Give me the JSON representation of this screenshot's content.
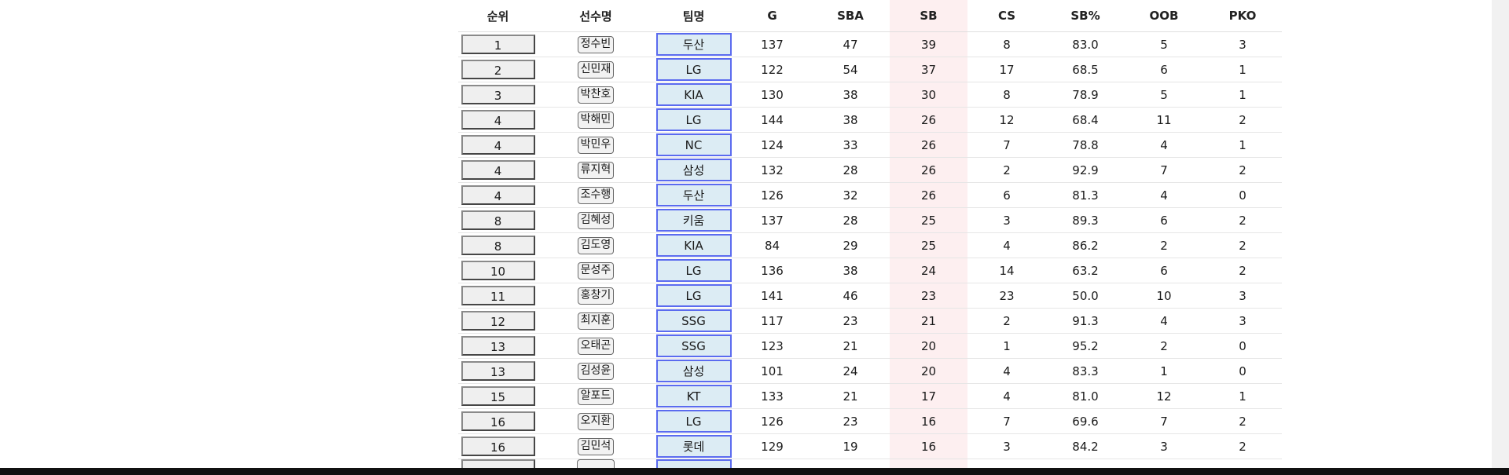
{
  "table": {
    "headers": [
      "순위",
      "선수명",
      "팀명",
      "G",
      "SBA",
      "SB",
      "CS",
      "SB%",
      "OOB",
      "PKO"
    ],
    "rows": [
      {
        "rank": "1",
        "name": "정수빈",
        "team": "두산",
        "g": "137",
        "sba": "47",
        "sb": "39",
        "cs": "8",
        "sbp": "83.0",
        "oob": "5",
        "pko": "3"
      },
      {
        "rank": "2",
        "name": "신민재",
        "team": "LG",
        "g": "122",
        "sba": "54",
        "sb": "37",
        "cs": "17",
        "sbp": "68.5",
        "oob": "6",
        "pko": "1"
      },
      {
        "rank": "3",
        "name": "박찬호",
        "team": "KIA",
        "g": "130",
        "sba": "38",
        "sb": "30",
        "cs": "8",
        "sbp": "78.9",
        "oob": "5",
        "pko": "1"
      },
      {
        "rank": "4",
        "name": "박해민",
        "team": "LG",
        "g": "144",
        "sba": "38",
        "sb": "26",
        "cs": "12",
        "sbp": "68.4",
        "oob": "11",
        "pko": "2"
      },
      {
        "rank": "4",
        "name": "박민우",
        "team": "NC",
        "g": "124",
        "sba": "33",
        "sb": "26",
        "cs": "7",
        "sbp": "78.8",
        "oob": "4",
        "pko": "1"
      },
      {
        "rank": "4",
        "name": "류지혁",
        "team": "삼성",
        "g": "132",
        "sba": "28",
        "sb": "26",
        "cs": "2",
        "sbp": "92.9",
        "oob": "7",
        "pko": "2"
      },
      {
        "rank": "4",
        "name": "조수행",
        "team": "두산",
        "g": "126",
        "sba": "32",
        "sb": "26",
        "cs": "6",
        "sbp": "81.3",
        "oob": "4",
        "pko": "0"
      },
      {
        "rank": "8",
        "name": "김혜성",
        "team": "키움",
        "g": "137",
        "sba": "28",
        "sb": "25",
        "cs": "3",
        "sbp": "89.3",
        "oob": "6",
        "pko": "2"
      },
      {
        "rank": "8",
        "name": "김도영",
        "team": "KIA",
        "g": "84",
        "sba": "29",
        "sb": "25",
        "cs": "4",
        "sbp": "86.2",
        "oob": "2",
        "pko": "2"
      },
      {
        "rank": "10",
        "name": "문성주",
        "team": "LG",
        "g": "136",
        "sba": "38",
        "sb": "24",
        "cs": "14",
        "sbp": "63.2",
        "oob": "6",
        "pko": "2"
      },
      {
        "rank": "11",
        "name": "홍창기",
        "team": "LG",
        "g": "141",
        "sba": "46",
        "sb": "23",
        "cs": "23",
        "sbp": "50.0",
        "oob": "10",
        "pko": "3"
      },
      {
        "rank": "12",
        "name": "최지훈",
        "team": "SSG",
        "g": "117",
        "sba": "23",
        "sb": "21",
        "cs": "2",
        "sbp": "91.3",
        "oob": "4",
        "pko": "3"
      },
      {
        "rank": "13",
        "name": "오태곤",
        "team": "SSG",
        "g": "123",
        "sba": "21",
        "sb": "20",
        "cs": "1",
        "sbp": "95.2",
        "oob": "2",
        "pko": "0"
      },
      {
        "rank": "13",
        "name": "김성윤",
        "team": "삼성",
        "g": "101",
        "sba": "24",
        "sb": "20",
        "cs": "4",
        "sbp": "83.3",
        "oob": "1",
        "pko": "0"
      },
      {
        "rank": "15",
        "name": "알포드",
        "team": "KT",
        "g": "133",
        "sba": "21",
        "sb": "17",
        "cs": "4",
        "sbp": "81.0",
        "oob": "12",
        "pko": "1"
      },
      {
        "rank": "16",
        "name": "오지환",
        "team": "LG",
        "g": "126",
        "sba": "23",
        "sb": "16",
        "cs": "7",
        "sbp": "69.6",
        "oob": "7",
        "pko": "2"
      },
      {
        "rank": "16",
        "name": "김민석",
        "team": "롯데",
        "g": "129",
        "sba": "19",
        "sb": "16",
        "cs": "3",
        "sbp": "84.2",
        "oob": "3",
        "pko": "2"
      }
    ]
  },
  "colors": {
    "sb_column_highlight": "#fdeff0",
    "team_cell_background": "#dcecf4",
    "team_cell_border": "#5b6bef",
    "rank_cell_background": "#efefef"
  }
}
